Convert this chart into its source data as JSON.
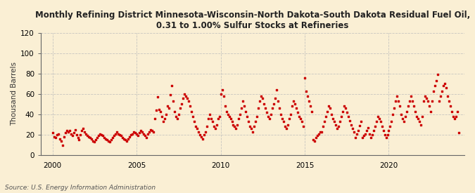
{
  "title": "Monthly Refining District Minnesota-Wisconsin-North Dakota-South Dakota Residual Fuel Oil,\n0.31 to 1.00% Sulfur Stocks at Refineries",
  "ylabel": "Thousand Barrels",
  "source": "Source: U.S. Energy Information Administration",
  "background_color": "#faefd4",
  "dot_color": "#cc0000",
  "dot_size": 4,
  "xlim": [
    1999.3,
    2024.5
  ],
  "ylim": [
    0,
    120
  ],
  "yticks": [
    0,
    20,
    40,
    60,
    80,
    100,
    120
  ],
  "xticks": [
    2000,
    2005,
    2010,
    2015,
    2020
  ],
  "grid_color": "#bbbbbb",
  "title_fontsize": 8.5,
  "ylabel_fontsize": 7.5,
  "tick_fontsize": 7.5,
  "source_fontsize": 6.5,
  "dates": [
    2000.0,
    2000.083,
    2000.167,
    2000.25,
    2000.333,
    2000.417,
    2000.5,
    2000.583,
    2000.667,
    2000.75,
    2000.833,
    2000.917,
    2001.0,
    2001.083,
    2001.167,
    2001.25,
    2001.333,
    2001.417,
    2001.5,
    2001.583,
    2001.667,
    2001.75,
    2001.833,
    2001.917,
    2002.0,
    2002.083,
    2002.167,
    2002.25,
    2002.333,
    2002.417,
    2002.5,
    2002.583,
    2002.667,
    2002.75,
    2002.833,
    2002.917,
    2003.0,
    2003.083,
    2003.167,
    2003.25,
    2003.333,
    2003.417,
    2003.5,
    2003.583,
    2003.667,
    2003.75,
    2003.833,
    2003.917,
    2004.0,
    2004.083,
    2004.167,
    2004.25,
    2004.333,
    2004.417,
    2004.5,
    2004.583,
    2004.667,
    2004.75,
    2004.833,
    2004.917,
    2005.0,
    2005.083,
    2005.167,
    2005.25,
    2005.333,
    2005.417,
    2005.5,
    2005.583,
    2005.667,
    2005.75,
    2005.833,
    2005.917,
    2006.0,
    2006.083,
    2006.167,
    2006.25,
    2006.333,
    2006.417,
    2006.5,
    2006.583,
    2006.667,
    2006.75,
    2006.833,
    2006.917,
    2007.0,
    2007.083,
    2007.167,
    2007.25,
    2007.333,
    2007.417,
    2007.5,
    2007.583,
    2007.667,
    2007.75,
    2007.833,
    2007.917,
    2008.0,
    2008.083,
    2008.167,
    2008.25,
    2008.333,
    2008.417,
    2008.5,
    2008.583,
    2008.667,
    2008.75,
    2008.833,
    2008.917,
    2009.0,
    2009.083,
    2009.167,
    2009.25,
    2009.333,
    2009.417,
    2009.5,
    2009.583,
    2009.667,
    2009.75,
    2009.833,
    2009.917,
    2010.0,
    2010.083,
    2010.167,
    2010.25,
    2010.333,
    2010.417,
    2010.5,
    2010.583,
    2010.667,
    2010.75,
    2010.833,
    2010.917,
    2011.0,
    2011.083,
    2011.167,
    2011.25,
    2011.333,
    2011.417,
    2011.5,
    2011.583,
    2011.667,
    2011.75,
    2011.833,
    2011.917,
    2012.0,
    2012.083,
    2012.167,
    2012.25,
    2012.333,
    2012.417,
    2012.5,
    2012.583,
    2012.667,
    2012.75,
    2012.833,
    2012.917,
    2013.0,
    2013.083,
    2013.167,
    2013.25,
    2013.333,
    2013.417,
    2013.5,
    2013.583,
    2013.667,
    2013.75,
    2013.833,
    2013.917,
    2014.0,
    2014.083,
    2014.167,
    2014.25,
    2014.333,
    2014.417,
    2014.5,
    2014.583,
    2014.667,
    2014.75,
    2014.833,
    2014.917,
    2015.0,
    2015.083,
    2015.167,
    2015.25,
    2015.333,
    2015.417,
    2015.5,
    2015.583,
    2015.667,
    2015.75,
    2015.833,
    2015.917,
    2016.0,
    2016.083,
    2016.167,
    2016.25,
    2016.333,
    2016.417,
    2016.5,
    2016.583,
    2016.667,
    2016.75,
    2016.833,
    2016.917,
    2017.0,
    2017.083,
    2017.167,
    2017.25,
    2017.333,
    2017.417,
    2017.5,
    2017.583,
    2017.667,
    2017.75,
    2017.833,
    2017.917,
    2018.0,
    2018.083,
    2018.167,
    2018.25,
    2018.333,
    2018.417,
    2018.5,
    2018.583,
    2018.667,
    2018.75,
    2018.833,
    2018.917,
    2019.0,
    2019.083,
    2019.167,
    2019.25,
    2019.333,
    2019.417,
    2019.5,
    2019.583,
    2019.667,
    2019.75,
    2019.833,
    2019.917,
    2020.0,
    2020.083,
    2020.167,
    2020.25,
    2020.333,
    2020.417,
    2020.5,
    2020.583,
    2020.667,
    2020.75,
    2020.833,
    2020.917,
    2021.0,
    2021.083,
    2021.167,
    2021.25,
    2021.333,
    2021.417,
    2021.5,
    2021.583,
    2021.667,
    2021.75,
    2021.833,
    2021.917,
    2022.0,
    2022.083,
    2022.167,
    2022.25,
    2022.333,
    2022.417,
    2022.5,
    2022.583,
    2022.667,
    2022.75,
    2022.833,
    2022.917,
    2023.0,
    2023.083,
    2023.167,
    2023.25,
    2023.333,
    2023.417,
    2023.5,
    2023.583,
    2023.667,
    2023.75,
    2023.833,
    2023.917,
    2024.0,
    2024.083,
    2024.167
  ],
  "values": [
    22,
    18,
    17,
    20,
    21,
    16,
    14,
    10,
    18,
    22,
    24,
    23,
    24,
    21,
    19,
    22,
    25,
    20,
    17,
    15,
    20,
    24,
    26,
    23,
    21,
    19,
    18,
    17,
    16,
    14,
    13,
    15,
    17,
    19,
    21,
    20,
    19,
    17,
    16,
    15,
    14,
    13,
    15,
    17,
    19,
    21,
    23,
    21,
    20,
    19,
    17,
    16,
    15,
    14,
    16,
    18,
    20,
    21,
    23,
    22,
    21,
    19,
    22,
    24,
    23,
    21,
    19,
    17,
    21,
    23,
    25,
    24,
    23,
    36,
    44,
    57,
    45,
    43,
    38,
    33,
    36,
    40,
    48,
    46,
    59,
    68,
    53,
    43,
    38,
    36,
    40,
    46,
    50,
    56,
    60,
    58,
    56,
    53,
    48,
    43,
    38,
    33,
    28,
    26,
    23,
    20,
    18,
    16,
    20,
    23,
    28,
    36,
    40,
    36,
    33,
    28,
    26,
    30,
    36,
    38,
    60,
    64,
    58,
    48,
    43,
    40,
    38,
    36,
    33,
    30,
    28,
    26,
    30,
    36,
    40,
    46,
    53,
    48,
    43,
    38,
    33,
    28,
    26,
    23,
    28,
    33,
    38,
    46,
    53,
    58,
    56,
    50,
    46,
    42,
    38,
    36,
    40,
    46,
    50,
    56,
    64,
    53,
    46,
    40,
    36,
    33,
    28,
    26,
    30,
    36,
    40,
    48,
    53,
    50,
    46,
    42,
    38,
    36,
    33,
    28,
    76,
    63,
    58,
    53,
    48,
    43,
    15,
    14,
    17,
    19,
    21,
    23,
    23,
    28,
    33,
    38,
    43,
    48,
    46,
    40,
    36,
    33,
    30,
    26,
    28,
    33,
    38,
    43,
    48,
    46,
    42,
    38,
    34,
    30,
    26,
    23,
    17,
    21,
    24,
    29,
    33,
    17,
    19,
    21,
    24,
    27,
    21,
    17,
    20,
    24,
    28,
    33,
    38,
    36,
    33,
    28,
    24,
    20,
    17,
    20,
    24,
    28,
    33,
    40,
    46,
    53,
    58,
    53,
    48,
    40,
    36,
    33,
    38,
    43,
    48,
    53,
    58,
    53,
    48,
    43,
    38,
    36,
    33,
    30,
    38,
    53,
    58,
    56,
    53,
    48,
    43,
    53,
    63,
    68,
    73,
    79,
    53,
    58,
    63,
    68,
    70,
    66,
    58,
    53,
    48,
    43,
    38,
    36,
    38,
    43,
    22
  ]
}
